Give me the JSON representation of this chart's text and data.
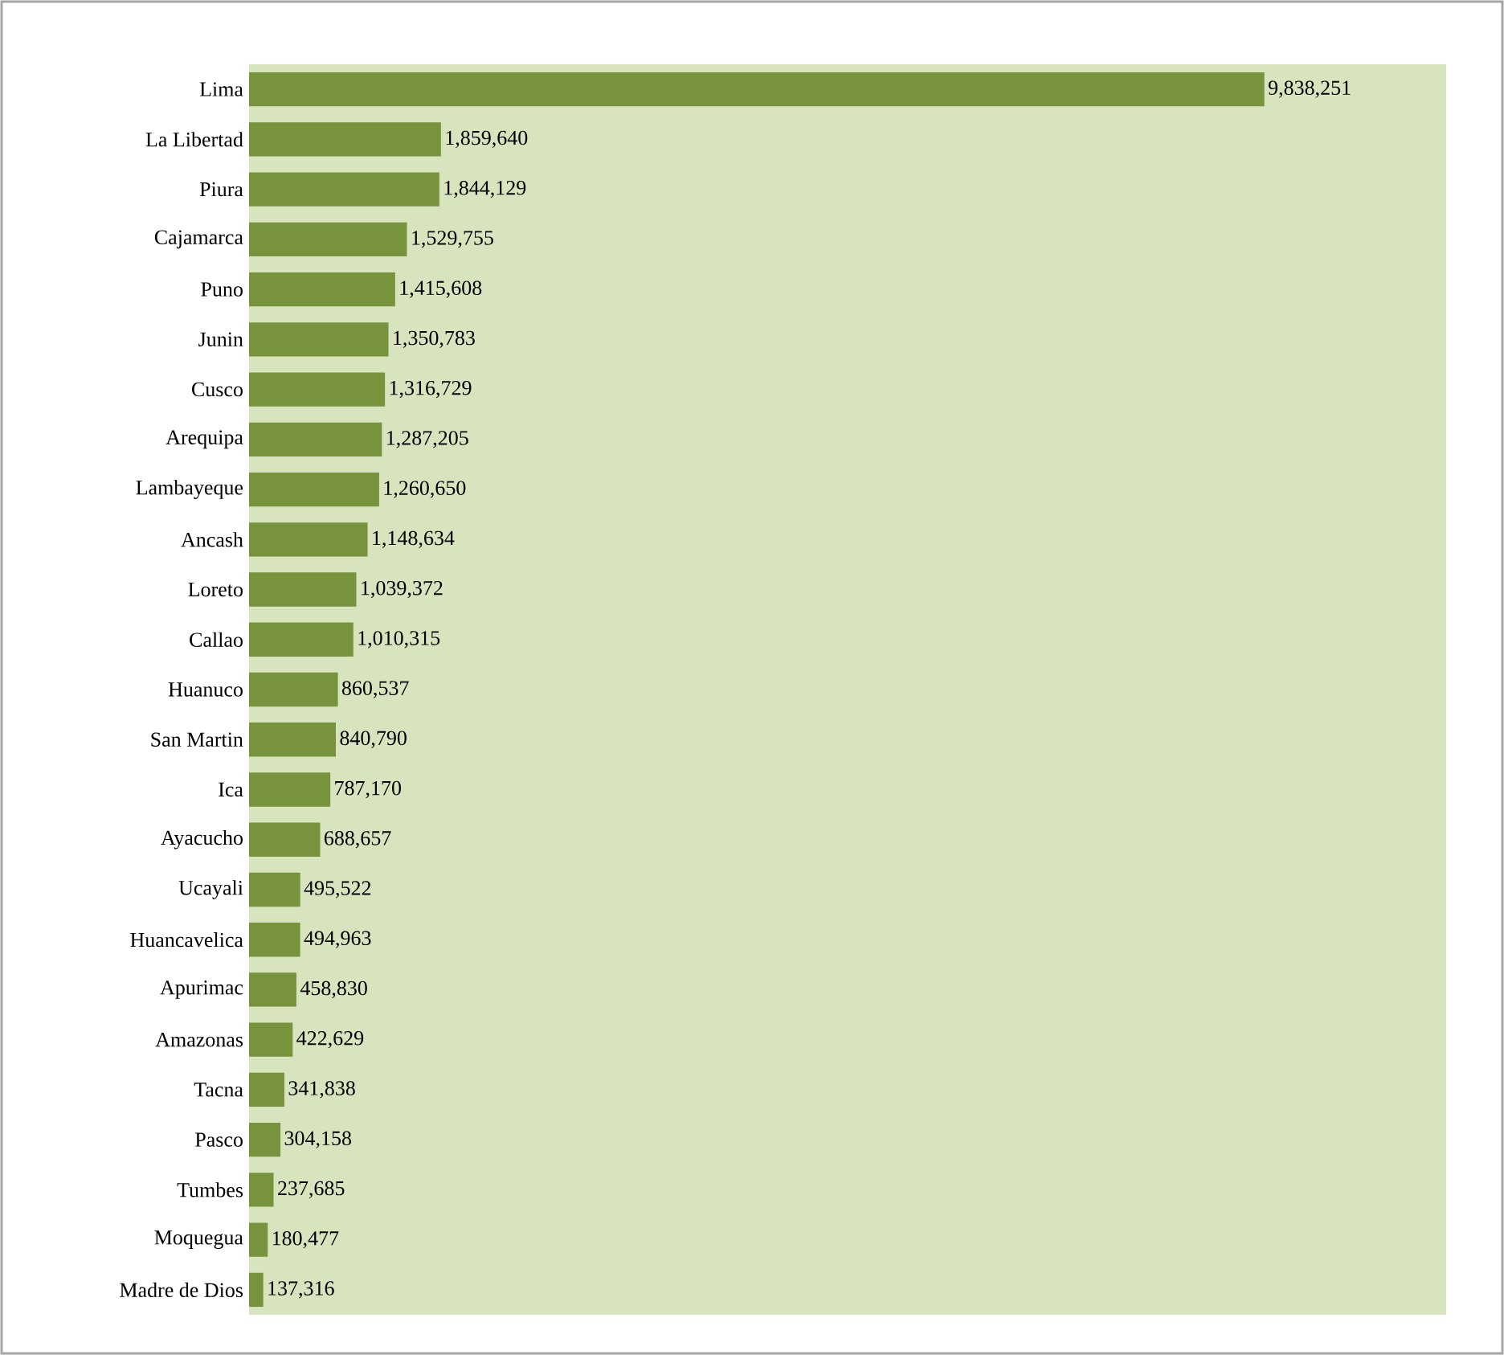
{
  "chart_data": {
    "type": "bar",
    "orientation": "horizontal",
    "color": "#77933c",
    "xlim": [
      0,
      11600000
    ],
    "categories": [
      "Lima",
      "La Libertad",
      "Piura",
      "Cajamarca",
      "Puno",
      "Junin",
      "Cusco",
      "Arequipa",
      "Lambayeque",
      "Ancash",
      "Loreto",
      "Callao",
      "Huanuco",
      "San Martin",
      "Ica",
      "Ayacucho",
      "Ucayali",
      "Huancavelica",
      "Apurimac",
      "Amazonas",
      "Tacna",
      "Pasco",
      "Tumbes",
      "Moquegua",
      "Madre de Dios"
    ],
    "values": [
      9838251,
      1859640,
      1844129,
      1529755,
      1415608,
      1350783,
      1316729,
      1287205,
      1260650,
      1148634,
      1039372,
      1010315,
      860537,
      840790,
      787170,
      688657,
      495522,
      494963,
      458830,
      422629,
      341838,
      304158,
      237685,
      180477,
      137316
    ],
    "value_labels": [
      "9,838,251",
      "1,859,640",
      "1,844,129",
      "1,529,755",
      "1,415,608",
      "1,350,783",
      "1,316,729",
      "1,287,205",
      "1,260,650",
      "1,148,634",
      "1,039,372",
      "1,010,315",
      "860,537",
      "840,790",
      "787,170",
      "688,657",
      "495,522",
      "494,963",
      "458,830",
      "422,629",
      "341,838",
      "304,158",
      "237,685",
      "180,477",
      "137,316"
    ],
    "grid": false
  }
}
